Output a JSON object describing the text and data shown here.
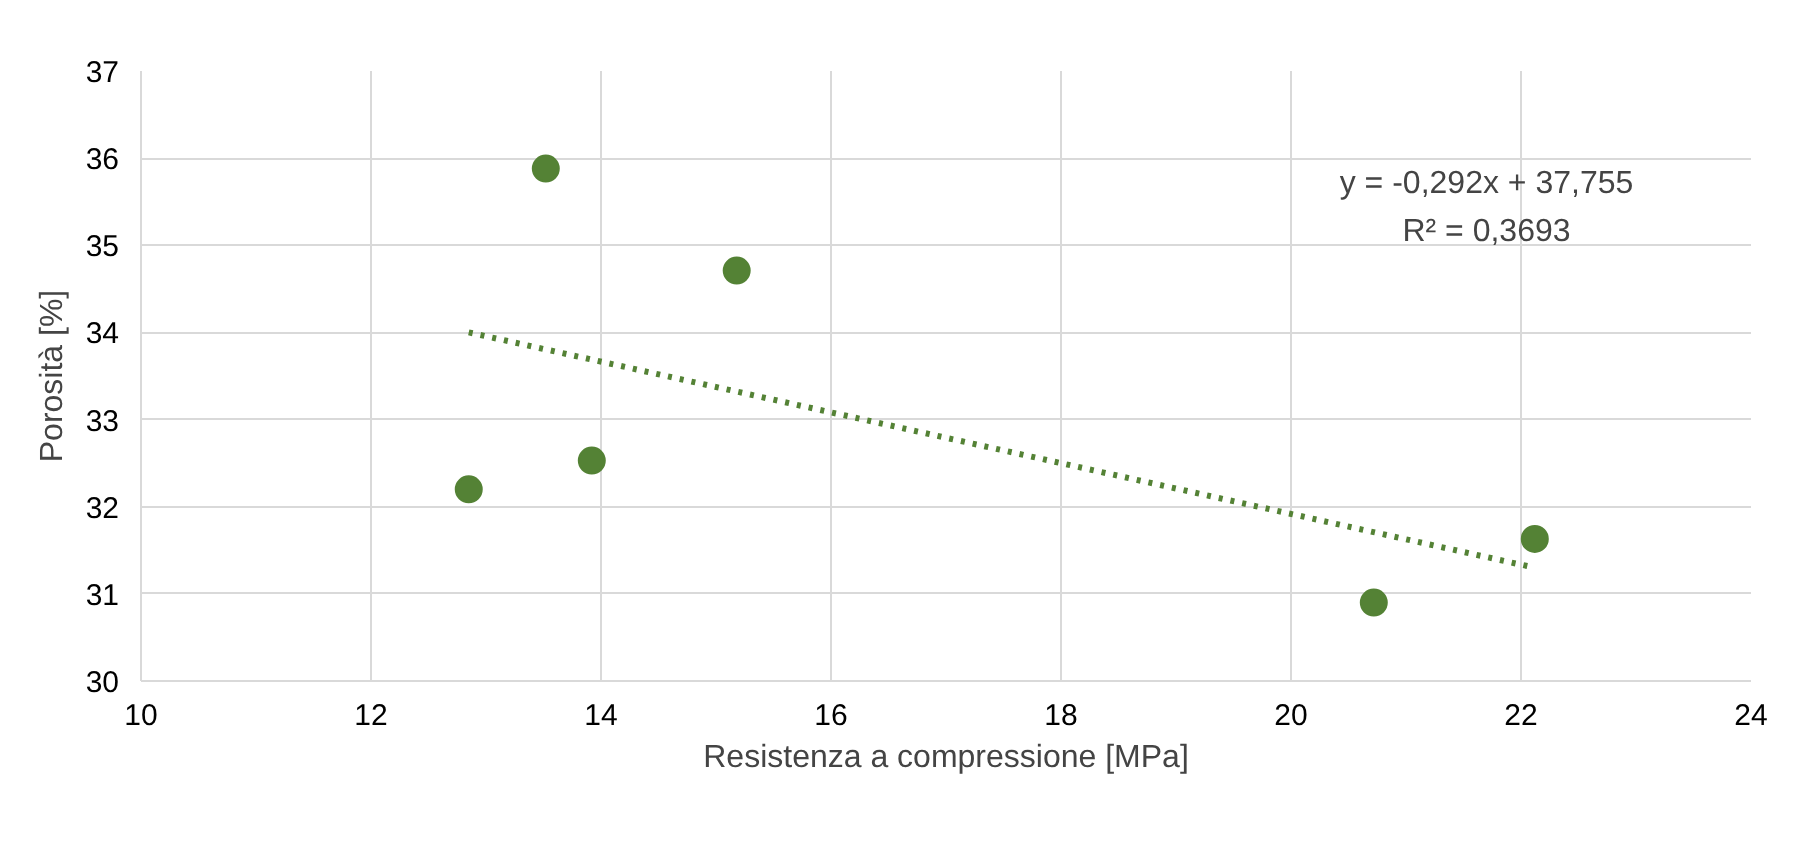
{
  "chart_data": {
    "type": "scatter",
    "xlabel": "Resistenza a compressione [MPa]",
    "ylabel": "Porosità [%]",
    "xlim": [
      10,
      24
    ],
    "xticks": [
      10,
      12,
      14,
      16,
      18,
      20,
      22,
      24
    ],
    "ylim": [
      30,
      37
    ],
    "yticks": [
      30,
      31,
      32,
      33,
      34,
      35,
      36,
      37
    ],
    "grid": true,
    "series": [
      {
        "marker": "circle",
        "color": "#548235",
        "x": [
          12.85,
          13.52,
          13.92,
          15.18,
          20.72,
          22.12
        ],
        "values": [
          32.2,
          35.88,
          32.53,
          34.71,
          30.9,
          31.63
        ]
      },
      {
        "type": "line",
        "color": "#548235",
        "line_style": "dotted",
        "x": [
          12.85,
          22.12
        ],
        "values": [
          34.0,
          31.3
        ]
      }
    ],
    "annotations": [
      "y = -0,292x + 37,755",
      "R² = 0,3693"
    ]
  }
}
